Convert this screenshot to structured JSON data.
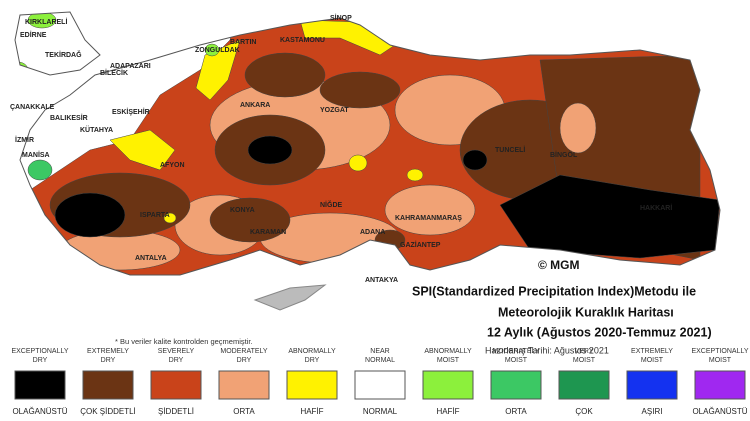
{
  "map": {
    "title_lines": [
      "SPI(Standardized Precipitation Index)Metodu ile",
      "Meteorolojik Kuraklık Haritası",
      "12 Aylık (Ağustos 2020-Temmuz 2021)"
    ],
    "prepared": "Hazırlanış Tarihi: Ağustos 2021",
    "copyright": "© MGM",
    "note": "* Bu veriler kalite kontrolden geçmemiştir.",
    "cities": [
      "KIRKLARELİ",
      "EDİRNE",
      "TEKİRDAĞ",
      "ÇANAKKALE",
      "BALIKESİR",
      "İZMİR",
      "MANİSA",
      "BİLECİK",
      "ADAPAZARI",
      "ESKİŞEHİR",
      "KÜTAHYA",
      "AFYON",
      "ZONGULDAK",
      "BARTIN",
      "KASTAMONU",
      "SİNOP",
      "ANKARA",
      "YOZGAT",
      "ISPARTA",
      "KONYA",
      "KARAMAN",
      "ANTALYA",
      "ADANA",
      "KAHRAMANMARAŞ",
      "GAZİANTEP",
      "ANTAKYA",
      "TUNCELİ",
      "BİNGÖL",
      "HAKKARİ",
      "NİĞDE"
    ],
    "legend": [
      {
        "lines": [
          "EXCEPTIONALLY",
          "DRY"
        ],
        "color": "#000000",
        "category": "OLAĞANÜSTÜ"
      },
      {
        "lines": [
          "EXTREMELY",
          "DRY"
        ],
        "color": "#6b3414",
        "category": "ÇOK ŞİDDETLİ"
      },
      {
        "lines": [
          "SEVERELY",
          "DRY"
        ],
        "color": "#c9431a",
        "category": "ŞİDDETLİ"
      },
      {
        "lines": [
          "MODERATELY",
          "DRY"
        ],
        "color": "#f1a275",
        "category": "ORTA"
      },
      {
        "lines": [
          "ABNORMALLY",
          "DRY"
        ],
        "color": "#fff200",
        "category": "HAFİF"
      },
      {
        "lines": [
          "NEAR",
          "NORMAL"
        ],
        "color": "#ffffff",
        "category": "NORMAL"
      },
      {
        "lines": [
          "ABNORMALLY",
          "MOIST"
        ],
        "color": "#8cf03c",
        "category": "HAFİF"
      },
      {
        "lines": [
          "MODERATELY",
          "MOIST"
        ],
        "color": "#3cc864",
        "category": "ORTA"
      },
      {
        "lines": [
          "VERY",
          "MOIST"
        ],
        "color": "#1e9650",
        "category": "ÇOK"
      },
      {
        "lines": [
          "EXTREMELY",
          "MOIST"
        ],
        "color": "#1432f0",
        "category": "AŞIRI"
      },
      {
        "lines": [
          "EXCEPTIONALLY",
          "MOIST"
        ],
        "color": "#a028f0",
        "category": "OLAĞANÜSTÜ"
      }
    ]
  }
}
